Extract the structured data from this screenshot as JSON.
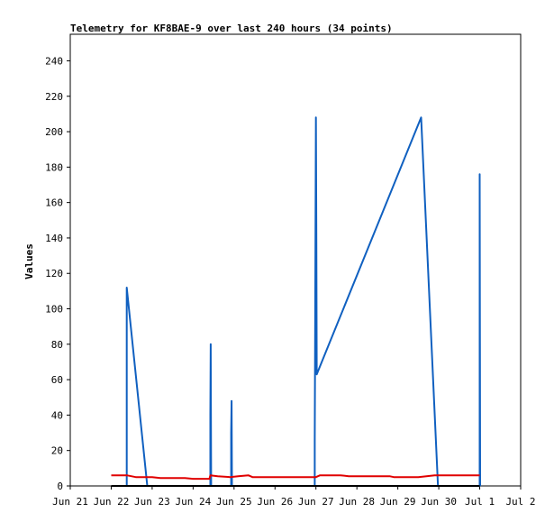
{
  "chart_data": {
    "type": "line",
    "title": "Telemetry for KF8BAE-9 over last 240 hours (34 points)",
    "ylabel": "Values",
    "xlabel": "",
    "ylim": [
      0,
      255
    ],
    "yticks": [
      0,
      20,
      40,
      60,
      80,
      100,
      120,
      140,
      160,
      180,
      200,
      220,
      240
    ],
    "xlim": [
      0,
      11
    ],
    "xticks": [
      {
        "label": "Jun 21",
        "pos": 0
      },
      {
        "label": "Jun 22",
        "pos": 1
      },
      {
        "label": "Jun 23",
        "pos": 2
      },
      {
        "label": "Jun 24",
        "pos": 3
      },
      {
        "label": "Jun 25",
        "pos": 4
      },
      {
        "label": "Jun 26",
        "pos": 5
      },
      {
        "label": "Jun 27",
        "pos": 6
      },
      {
        "label": "Jun 28",
        "pos": 7
      },
      {
        "label": "Jun 29",
        "pos": 8
      },
      {
        "label": "Jun 30",
        "pos": 9
      },
      {
        "label": "Jul 1",
        "pos": 10
      },
      {
        "label": "Jul 2",
        "pos": 11
      }
    ],
    "grid": false,
    "series": [
      {
        "color": "#1060c0",
        "points": [
          [
            1.38,
            0
          ],
          [
            1.38,
            112
          ],
          [
            1.88,
            0
          ],
          [
            3.42,
            0
          ],
          [
            3.42,
            40
          ],
          [
            3.43,
            80
          ],
          [
            3.44,
            0
          ],
          [
            3.93,
            0
          ],
          [
            3.93,
            30
          ],
          [
            3.94,
            48
          ],
          [
            3.95,
            0
          ],
          [
            5.97,
            0
          ],
          [
            5.97,
            25
          ],
          [
            5.98,
            80
          ],
          [
            6.0,
            208
          ],
          [
            6.01,
            138
          ],
          [
            6.02,
            63
          ],
          [
            8.57,
            208
          ],
          [
            8.98,
            0
          ],
          [
            10.0,
            0
          ],
          [
            10.0,
            176
          ],
          [
            10.01,
            0
          ]
        ]
      },
      {
        "color": "#e00000",
        "points": [
          [
            1.0,
            6
          ],
          [
            1.38,
            6
          ],
          [
            1.6,
            5
          ],
          [
            2.0,
            5
          ],
          [
            2.2,
            4.5
          ],
          [
            2.8,
            4.5
          ],
          [
            3.0,
            4
          ],
          [
            3.4,
            4
          ],
          [
            3.42,
            6
          ],
          [
            3.6,
            5.5
          ],
          [
            3.9,
            5
          ],
          [
            4.1,
            5.5
          ],
          [
            4.35,
            6
          ],
          [
            4.45,
            5
          ],
          [
            6.0,
            5
          ],
          [
            6.1,
            6
          ],
          [
            6.6,
            6
          ],
          [
            6.8,
            5.5
          ],
          [
            7.8,
            5.5
          ],
          [
            7.9,
            5
          ],
          [
            8.5,
            5
          ],
          [
            8.9,
            6
          ],
          [
            10.0,
            6
          ]
        ]
      },
      {
        "color": "#000000",
        "points": [
          [
            1.0,
            0
          ],
          [
            10.0,
            0
          ]
        ]
      }
    ]
  }
}
